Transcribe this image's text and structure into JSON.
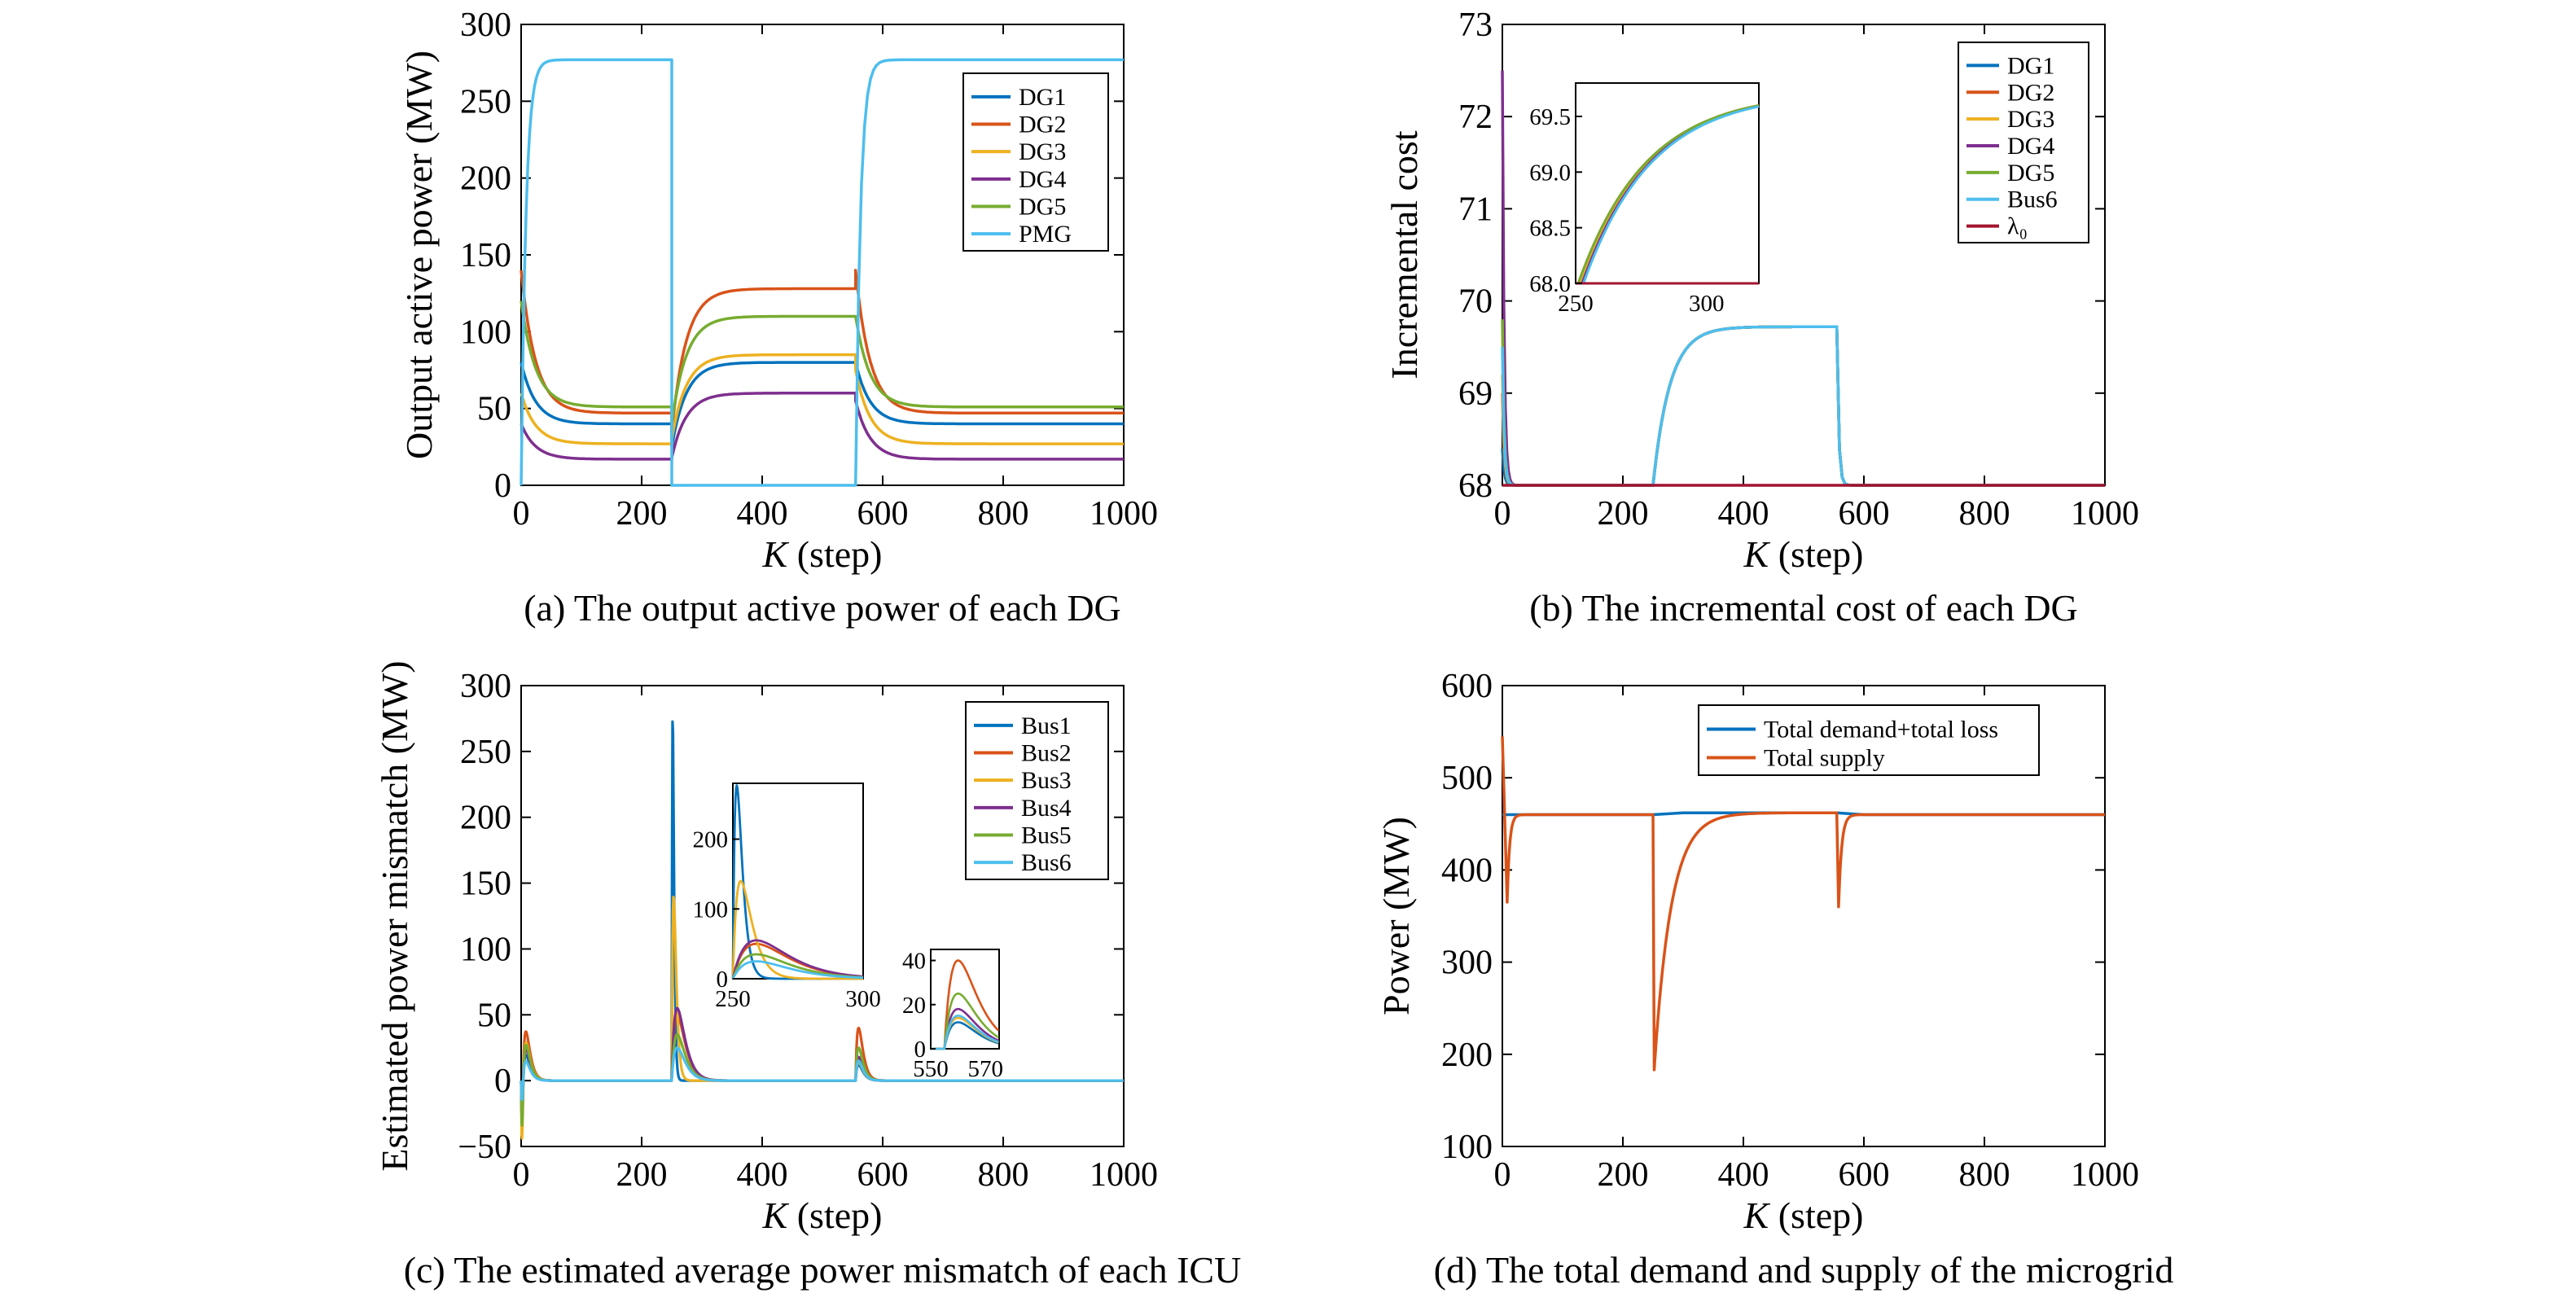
{
  "colors": {
    "c1": "#0072BD",
    "c2": "#D95319",
    "c3": "#EDB120",
    "c4": "#7E2F8E",
    "c5": "#77AC30",
    "c6": "#4DBEEE",
    "c7": "#A2142F"
  },
  "chart_data": [
    {
      "id": "a",
      "type": "line",
      "caption": "(a) The output active power of each DG",
      "xlabel_italic": "K",
      "xlabel_rest": " (step)",
      "ylabel": "Output active power (MW)",
      "xlim": [
        0,
        1000
      ],
      "ylim": [
        0,
        300
      ],
      "xticks": [
        0,
        200,
        400,
        600,
        800,
        1000
      ],
      "yticks": [
        0,
        50,
        100,
        150,
        200,
        250,
        300
      ],
      "legend_position": "top-right",
      "series": [
        {
          "name": "DG1",
          "color": "c1",
          "segments": [
            {
              "x0": 0,
              "x1": 250,
              "from": 80,
              "to": 40
            },
            {
              "x0": 250,
              "x1": 555,
              "from": 25,
              "to": 80
            },
            {
              "x0": 555,
              "x1": 1000,
              "from": 80,
              "to": 40
            }
          ]
        },
        {
          "name": "DG2",
          "color": "c2",
          "segments": [
            {
              "x0": 0,
              "x1": 250,
              "from": 140,
              "to": 47
            },
            {
              "x0": 250,
              "x1": 555,
              "from": 35,
              "to": 128
            },
            {
              "x0": 555,
              "x1": 1000,
              "from": 140,
              "to": 47
            }
          ]
        },
        {
          "name": "DG3",
          "color": "c3",
          "segments": [
            {
              "x0": 0,
              "x1": 250,
              "from": 60,
              "to": 27
            },
            {
              "x0": 250,
              "x1": 555,
              "from": 30,
              "to": 85
            },
            {
              "x0": 555,
              "x1": 1000,
              "from": 75,
              "to": 27
            }
          ]
        },
        {
          "name": "DG4",
          "color": "c4",
          "segments": [
            {
              "x0": 0,
              "x1": 250,
              "from": 40,
              "to": 17
            },
            {
              "x0": 250,
              "x1": 555,
              "from": 18,
              "to": 60
            },
            {
              "x0": 555,
              "x1": 1000,
              "from": 55,
              "to": 17
            }
          ]
        },
        {
          "name": "DG5",
          "color": "c5",
          "segments": [
            {
              "x0": 0,
              "x1": 250,
              "from": 120,
              "to": 51
            },
            {
              "x0": 250,
              "x1": 555,
              "from": 40,
              "to": 110
            },
            {
              "x0": 555,
              "x1": 1000,
              "from": 110,
              "to": 51
            }
          ]
        },
        {
          "name": "PMG",
          "color": "c6",
          "segments": [
            {
              "x0": 0,
              "x1": 250,
              "from": 0,
              "to": 277
            },
            {
              "x0": 250,
              "x1": 555,
              "from": 0,
              "to": 0
            },
            {
              "x0": 555,
              "x1": 1000,
              "from": 0,
              "to": 277
            }
          ]
        }
      ]
    },
    {
      "id": "b",
      "type": "line",
      "caption": "(b) The incremental cost of each DG",
      "xlabel_italic": "K",
      "xlabel_rest": " (step)",
      "ylabel": "Incremental cost",
      "xlim": [
        0,
        1000
      ],
      "ylim": [
        68,
        73
      ],
      "xticks": [
        0,
        200,
        400,
        600,
        800,
        1000
      ],
      "yticks": [
        68,
        69,
        70,
        71,
        72,
        73
      ],
      "legend_position": "top-right",
      "series": [
        {
          "name": "DG1",
          "color": "c1",
          "segments": [
            {
              "x0": 0,
              "x1": 250,
              "from": 68.4,
              "to": 68
            },
            {
              "x0": 250,
              "x1": 555,
              "from": 68,
              "to": 69.72
            },
            {
              "x0": 555,
              "x1": 1000,
              "from": 69.72,
              "to": 68
            }
          ]
        },
        {
          "name": "DG2",
          "color": "c2",
          "segments": [
            {
              "x0": 0,
              "x1": 250,
              "from": 69.0,
              "to": 68
            },
            {
              "x0": 250,
              "x1": 555,
              "from": 68,
              "to": 69.72
            },
            {
              "x0": 555,
              "x1": 1000,
              "from": 69.72,
              "to": 68
            }
          ]
        },
        {
          "name": "DG3",
          "color": "c3",
          "segments": [
            {
              "x0": 0,
              "x1": 250,
              "from": 69.2,
              "to": 68
            },
            {
              "x0": 250,
              "x1": 555,
              "from": 68,
              "to": 69.72
            },
            {
              "x0": 555,
              "x1": 1000,
              "from": 69.72,
              "to": 68
            }
          ]
        },
        {
          "name": "DG4",
          "color": "c4",
          "segments": [
            {
              "x0": 0,
              "x1": 250,
              "from": 72.5,
              "to": 68
            },
            {
              "x0": 250,
              "x1": 555,
              "from": 68,
              "to": 69.72
            },
            {
              "x0": 555,
              "x1": 1000,
              "from": 69.72,
              "to": 68
            }
          ]
        },
        {
          "name": "DG5",
          "color": "c5",
          "segments": [
            {
              "x0": 0,
              "x1": 250,
              "from": 69.8,
              "to": 68
            },
            {
              "x0": 250,
              "x1": 555,
              "from": 68,
              "to": 69.72
            },
            {
              "x0": 555,
              "x1": 1000,
              "from": 69.72,
              "to": 68
            }
          ]
        },
        {
          "name": "Bus6",
          "color": "c6",
          "segments": [
            {
              "x0": 0,
              "x1": 250,
              "from": 69.5,
              "to": 68
            },
            {
              "x0": 250,
              "x1": 555,
              "from": 68,
              "to": 69.72
            },
            {
              "x0": 555,
              "x1": 1000,
              "from": 69.72,
              "to": 68
            }
          ]
        },
        {
          "name": "λ₀",
          "color": "c7",
          "segments": [
            {
              "x0": 0,
              "x1": 1000,
              "from": 68,
              "to": 68
            }
          ]
        }
      ],
      "inset": {
        "xlim": [
          250,
          320
        ],
        "ylim": [
          68,
          69.8
        ],
        "xticks": [
          250,
          300
        ],
        "ytick_labels": [
          "68.0",
          "68.5",
          "69.0",
          "69.5"
        ],
        "yticks": [
          68,
          68.5,
          69,
          69.5
        ],
        "series": [
          {
            "color": "c1",
            "x_start": 252,
            "from": 68,
            "to": 69.72
          },
          {
            "color": "c2",
            "x_start": 251,
            "from": 68,
            "to": 69.72
          },
          {
            "color": "c3",
            "x_start": 251.5,
            "from": 68,
            "to": 69.72
          },
          {
            "color": "c4",
            "x_start": 252.5,
            "from": 68,
            "to": 69.72
          },
          {
            "color": "c5",
            "x_start": 251,
            "from": 68,
            "to": 69.72
          },
          {
            "color": "c6",
            "x_start": 253,
            "from": 68,
            "to": 69.72
          }
        ]
      }
    },
    {
      "id": "c",
      "type": "line",
      "caption": "(c) The estimated average power mismatch of each ICU",
      "xlabel_italic": "K",
      "xlabel_rest": " (step)",
      "ylabel": "Estimated power mismatch (MW)",
      "xlim": [
        0,
        1000
      ],
      "ylim": [
        -50,
        300
      ],
      "xticks": [
        0,
        200,
        400,
        600,
        800,
        1000
      ],
      "yticks": [
        -50,
        0,
        50,
        100,
        150,
        200,
        250,
        300
      ],
      "ytick_labels": [
        "−50",
        "0",
        "50",
        "100",
        "150",
        "200",
        "250",
        "300"
      ],
      "legend_position": "top-right",
      "series": [
        {
          "name": "Bus1",
          "color": "c1",
          "peaks": [
            {
              "x": 3,
              "min": -20
            },
            {
              "x": 5,
              "peak": 20
            },
            {
              "x": 250,
              "peak": 277
            },
            {
              "x": 558,
              "peak": 12
            }
          ]
        },
        {
          "name": "Bus2",
          "color": "c2",
          "peaks": [
            {
              "x": 3,
              "min": -25
            },
            {
              "x": 8,
              "peak": 38
            },
            {
              "x": 255,
              "peak": 50
            },
            {
              "x": 560,
              "peak": 40
            }
          ]
        },
        {
          "name": "Bus3",
          "color": "c3",
          "peaks": [
            {
              "x": 3,
              "min": -45
            },
            {
              "x": 6,
              "peak": 30
            },
            {
              "x": 252,
              "peak": 140
            },
            {
              "x": 558,
              "peak": 14
            }
          ]
        },
        {
          "name": "Bus4",
          "color": "c4",
          "peaks": [
            {
              "x": 3,
              "min": -30
            },
            {
              "x": 7,
              "peak": 25
            },
            {
              "x": 254,
              "peak": 55
            },
            {
              "x": 559,
              "peak": 18
            }
          ]
        },
        {
          "name": "Bus5",
          "color": "c5",
          "peaks": [
            {
              "x": 3,
              "min": -35
            },
            {
              "x": 7,
              "peak": 28
            },
            {
              "x": 255,
              "peak": 35
            },
            {
              "x": 559,
              "peak": 25
            }
          ]
        },
        {
          "name": "Bus6",
          "color": "c6",
          "peaks": [
            {
              "x": 3,
              "min": -15
            },
            {
              "x": 6,
              "peak": 15
            },
            {
              "x": 256,
              "peak": 25
            },
            {
              "x": 560,
              "peak": 15
            }
          ]
        }
      ],
      "inset1": {
        "xlim": [
          250,
          300
        ],
        "ylim": [
          0,
          280
        ],
        "xticks": [
          250,
          300
        ],
        "yticks": [
          0,
          100,
          200
        ]
      },
      "inset2": {
        "xlim": [
          550,
          575
        ],
        "ylim": [
          0,
          45
        ],
        "xticks": [
          550,
          570
        ],
        "yticks": [
          0,
          20,
          40
        ]
      }
    },
    {
      "id": "d",
      "type": "line",
      "caption": "(d) The total demand and supply of the microgrid",
      "xlabel_italic": "K",
      "xlabel_rest": " (step)",
      "ylabel": "Power (MW)",
      "xlim": [
        0,
        1000
      ],
      "ylim": [
        100,
        600
      ],
      "xticks": [
        0,
        200,
        400,
        600,
        800,
        1000
      ],
      "yticks": [
        100,
        200,
        300,
        400,
        500,
        600
      ],
      "legend_position": "top-right",
      "series": [
        {
          "name": "Total demand+total loss",
          "color": "c1",
          "points": [
            [
              0,
              460
            ],
            [
              250,
              460
            ],
            [
              300,
              462
            ],
            [
              400,
              462
            ],
            [
              555,
              462
            ],
            [
              600,
              460
            ],
            [
              1000,
              460
            ]
          ]
        },
        {
          "name": "Total supply",
          "color": "c2",
          "events": [
            {
              "x": 0,
              "value": 545
            },
            {
              "x": 8,
              "value": 365
            },
            {
              "x": 252,
              "value": 183
            },
            {
              "x": 558,
              "value": 360
            }
          ],
          "baseline": 460,
          "plateau": 462
        }
      ]
    }
  ]
}
